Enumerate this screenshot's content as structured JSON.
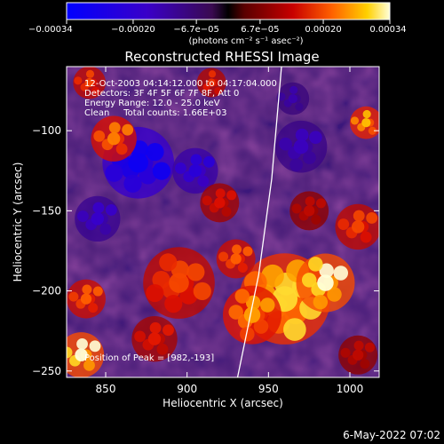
{
  "chart_data": {
    "type": "heatmap",
    "title": "Reconstructed RHESSI Image",
    "xlabel": "Heliocentric X (arcsec)",
    "ylabel": "Heliocentric Y (arcsec)",
    "xlim": [
      826,
      1018
    ],
    "ylim": [
      -254,
      -60
    ],
    "x_ticks": [
      850,
      900,
      950,
      1000
    ],
    "x_tick_labels": [
      "850",
      "900",
      "950",
      "1000"
    ],
    "y_ticks": [
      -100,
      -150,
      -200,
      -250
    ],
    "y_tick_labels": [
      "−100",
      "−150",
      "−200",
      "−250"
    ],
    "colorbar": {
      "range": [
        -0.00034,
        0.00034
      ],
      "ticks": [
        -0.00034,
        -0.0002,
        -6.7e-05,
        6.7e-05,
        0.0002,
        0.00034
      ],
      "tick_labels": [
        "−0.00034",
        "−0.00020",
        "−6.7e−05",
        "6.7e−05",
        "0.00020",
        "0.00034"
      ],
      "units_label": "(photons cm⁻² s⁻¹ asec⁻²)"
    },
    "annotations": [
      "12-Oct-2003 04:14:12.000 to 04:17:04.000",
      "Detectors: 3F 4F 5F 6F 7F 8F, Att 0",
      "Energy Range: 12.0 - 25.0 keV",
      "Clean     Total counts: 1.66E+03"
    ],
    "peak_label": "Position of Peak = [982,-193]",
    "peak": [
      982,
      -193
    ],
    "limb": [
      [
        931,
        -254
      ],
      [
        944,
        -190
      ],
      [
        952,
        -130
      ],
      [
        958,
        -60
      ]
    ],
    "bright_regions": [
      {
        "x": 960,
        "y": -205,
        "r": 28,
        "v": 0.0003
      },
      {
        "x": 940,
        "y": -215,
        "r": 18,
        "v": 0.00026
      },
      {
        "x": 985,
        "y": -195,
        "r": 18,
        "v": 0.00034
      },
      {
        "x": 1005,
        "y": -160,
        "r": 14,
        "v": 0.0002
      },
      {
        "x": 1010,
        "y": -95,
        "r": 10,
        "v": 0.00028
      },
      {
        "x": 835,
        "y": -240,
        "r": 14,
        "v": 0.00034
      },
      {
        "x": 838,
        "y": -205,
        "r": 12,
        "v": 0.00022
      },
      {
        "x": 855,
        "y": -105,
        "r": 14,
        "v": 0.00024
      },
      {
        "x": 840,
        "y": -70,
        "r": 10,
        "v": 0.0002
      },
      {
        "x": 895,
        "y": -195,
        "r": 22,
        "v": 0.0002
      },
      {
        "x": 880,
        "y": -230,
        "r": 14,
        "v": 0.00016
      },
      {
        "x": 920,
        "y": -145,
        "r": 12,
        "v": 0.00015
      },
      {
        "x": 930,
        "y": -180,
        "r": 12,
        "v": 0.00022
      },
      {
        "x": 915,
        "y": -70,
        "r": 9,
        "v": 0.00018
      },
      {
        "x": 1005,
        "y": -240,
        "r": 12,
        "v": 0.00012
      },
      {
        "x": 975,
        "y": -150,
        "r": 12,
        "v": 0.00012
      }
    ],
    "dark_regions": [
      {
        "x": 870,
        "y": -120,
        "r": 22,
        "v": -0.0003
      },
      {
        "x": 905,
        "y": -125,
        "r": 14,
        "v": -0.00022
      },
      {
        "x": 845,
        "y": -155,
        "r": 14,
        "v": -0.00018
      },
      {
        "x": 970,
        "y": -110,
        "r": 16,
        "v": -0.00016
      },
      {
        "x": 965,
        "y": -80,
        "r": 10,
        "v": -0.00014
      }
    ]
  },
  "footer": {
    "date": "6-May-2022 07:02"
  }
}
